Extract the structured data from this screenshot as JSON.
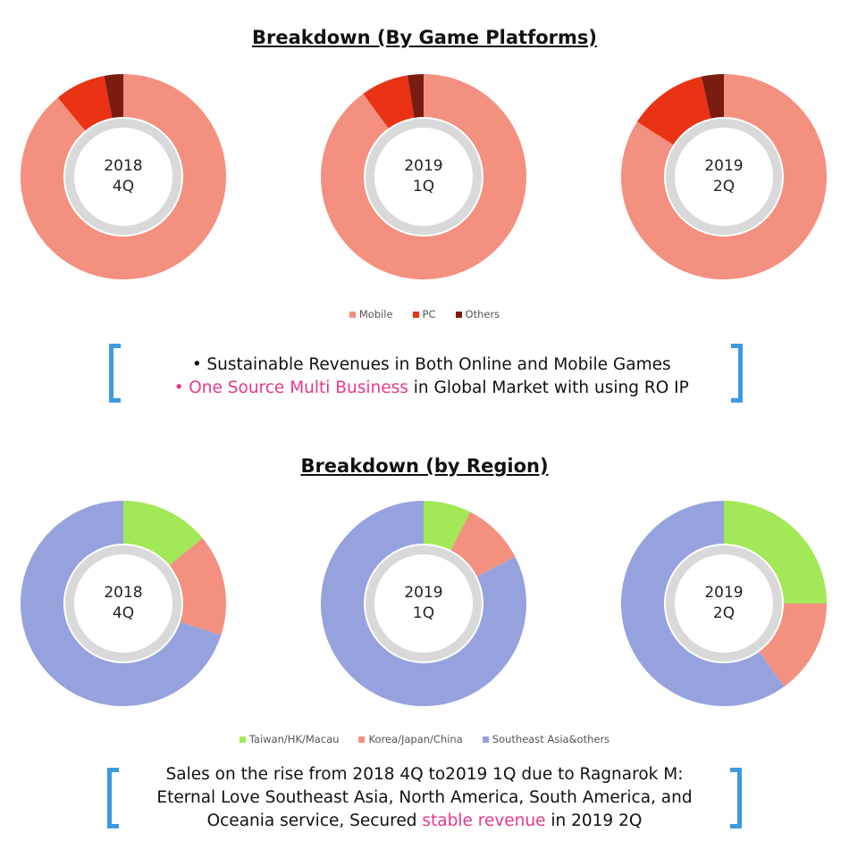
{
  "platform_section": {
    "title": "Breakdown (By Game Platforms)",
    "note": {
      "line1": "Sustainable Revenues in Both Online and Mobile Games",
      "line2_highlight": "One Source Multi Business",
      "line2_rest": " in Global Market with using RO IP",
      "bullet": "•"
    }
  },
  "region_section": {
    "title": "Breakdown (by Region)",
    "note": {
      "line1": "Sales on the rise from 2018 4Q to2019 1Q due to Ragnarok M:",
      "line2": "Eternal Love Southeast Asia, North America, South America, and",
      "line3_pre": "Oceania service, Secured ",
      "line3_highlight": "stable revenue",
      "line3_post": " in 2019 2Q"
    }
  },
  "colors": {
    "mobile": "#f4907f",
    "pc": "#ea3214",
    "others": "#7a1c10",
    "taiwan": "#a2e857",
    "korea": "#f4907f",
    "sea": "#96a2de",
    "inner_ring": "#d9d9d9",
    "bracket": "#3d9ae0",
    "highlight": "#e6398a"
  },
  "chart_data": [
    {
      "type": "pie",
      "group": "platform",
      "center_label": [
        "2018",
        "4Q"
      ],
      "series": [
        "Mobile",
        "PC",
        "Others"
      ],
      "values": [
        89,
        8,
        3
      ]
    },
    {
      "type": "pie",
      "group": "platform",
      "center_label": [
        "2019",
        "1Q"
      ],
      "series": [
        "Mobile",
        "PC",
        "Others"
      ],
      "values": [
        90,
        7.5,
        2.5
      ]
    },
    {
      "type": "pie",
      "group": "platform",
      "center_label": [
        "2019",
        "2Q"
      ],
      "series": [
        "Mobile",
        "PC",
        "Others"
      ],
      "values": [
        84,
        12.5,
        3.5
      ]
    },
    {
      "type": "pie",
      "group": "region",
      "center_label": [
        "2018",
        "4Q"
      ],
      "series": [
        "Taiwan/HK/Macau",
        "Korea/Japan/China",
        "Southeast Asia&others"
      ],
      "values": [
        14,
        16,
        70
      ]
    },
    {
      "type": "pie",
      "group": "region",
      "center_label": [
        "2019",
        "1Q"
      ],
      "series": [
        "Taiwan/HK/Macau",
        "Korea/Japan/China",
        "Southeast Asia&others"
      ],
      "values": [
        7.5,
        10,
        82.5
      ]
    },
    {
      "type": "pie",
      "group": "region",
      "center_label": [
        "2019",
        "2Q"
      ],
      "series": [
        "Taiwan/HK/Macau",
        "Korea/Japan/China",
        "Southeast Asia&others"
      ],
      "values": [
        25,
        15,
        60
      ]
    }
  ],
  "legends": {
    "platform": [
      "Mobile",
      "PC",
      "Others"
    ],
    "region": [
      "Taiwan/HK/Macau",
      "Korea/Japan/China",
      "Southeast Asia&others"
    ]
  }
}
